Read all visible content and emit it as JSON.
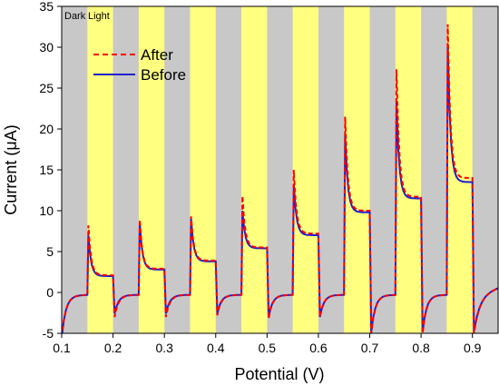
{
  "chart_data": {
    "type": "line",
    "title": "",
    "xlabel": "Potential (V)",
    "ylabel": "Current (μA)",
    "xlim": [
      0.1,
      0.95
    ],
    "ylim": [
      -5,
      35
    ],
    "x_ticks": [
      0.1,
      0.2,
      0.3,
      0.4,
      0.5,
      0.6,
      0.7,
      0.8,
      0.9
    ],
    "x_tick_labels": [
      "0.1",
      "0.2",
      "0.3",
      "0.4",
      "0.5",
      "0.6",
      "0.7",
      "0.8",
      "0.9"
    ],
    "y_ticks": [
      -5,
      0,
      5,
      10,
      15,
      20,
      25,
      30,
      35
    ],
    "y_tick_labels": [
      "-5",
      "0",
      "5",
      "10",
      "15",
      "20",
      "25",
      "30",
      "35"
    ],
    "band_labels": {
      "dark": "Dark",
      "light": "Light"
    },
    "dark_color": "#c8c8c8",
    "light_color": "#ffff80",
    "light_intervals": [
      [
        0.15,
        0.2
      ],
      [
        0.25,
        0.3
      ],
      [
        0.35,
        0.4
      ],
      [
        0.45,
        0.5
      ],
      [
        0.55,
        0.6
      ],
      [
        0.65,
        0.7
      ],
      [
        0.75,
        0.8
      ],
      [
        0.85,
        0.9
      ]
    ],
    "legend_position": "top-left",
    "series": [
      {
        "name": "After",
        "color": "#ff0000",
        "dash": true,
        "steps": [
          {
            "on": 0.15,
            "off": 0.2,
            "peak": 8.2,
            "plateau": 2.1,
            "dip": -3.0
          },
          {
            "on": 0.25,
            "off": 0.3,
            "peak": 8.9,
            "plateau": 2.9,
            "dip": -3.0
          },
          {
            "on": 0.35,
            "off": 0.4,
            "peak": 9.3,
            "plateau": 3.9,
            "dip": -2.8
          },
          {
            "on": 0.45,
            "off": 0.5,
            "peak": 11.8,
            "plateau": 5.5,
            "dip": -3.2
          },
          {
            "on": 0.55,
            "off": 0.6,
            "peak": 15.0,
            "plateau": 7.2,
            "dip": -3.0
          },
          {
            "on": 0.65,
            "off": 0.7,
            "peak": 21.5,
            "plateau": 10.0,
            "dip": -5.0
          },
          {
            "on": 0.75,
            "off": 0.8,
            "peak": 27.3,
            "plateau": 11.7,
            "dip": -5.0
          },
          {
            "on": 0.85,
            "off": 0.9,
            "peak": 32.8,
            "plateau": 14.0,
            "dip": -5.0
          }
        ]
      },
      {
        "name": "Before",
        "color": "#1f1fcf",
        "dash": false,
        "steps": [
          {
            "on": 0.15,
            "off": 0.2,
            "peak": 7.0,
            "plateau": 2.0,
            "dip": -2.6
          },
          {
            "on": 0.25,
            "off": 0.3,
            "peak": 8.6,
            "plateau": 2.8,
            "dip": -2.6
          },
          {
            "on": 0.35,
            "off": 0.4,
            "peak": 9.0,
            "plateau": 3.8,
            "dip": -2.6
          },
          {
            "on": 0.45,
            "off": 0.5,
            "peak": 10.0,
            "plateau": 5.4,
            "dip": -3.0
          },
          {
            "on": 0.55,
            "off": 0.6,
            "peak": 13.2,
            "plateau": 7.0,
            "dip": -3.0
          },
          {
            "on": 0.65,
            "off": 0.7,
            "peak": 19.2,
            "plateau": 9.8,
            "dip": -4.8
          },
          {
            "on": 0.75,
            "off": 0.8,
            "peak": 23.3,
            "plateau": 11.5,
            "dip": -4.8
          },
          {
            "on": 0.85,
            "off": 0.9,
            "peak": 30.5,
            "plateau": 13.5,
            "dip": -4.8
          }
        ]
      }
    ]
  }
}
